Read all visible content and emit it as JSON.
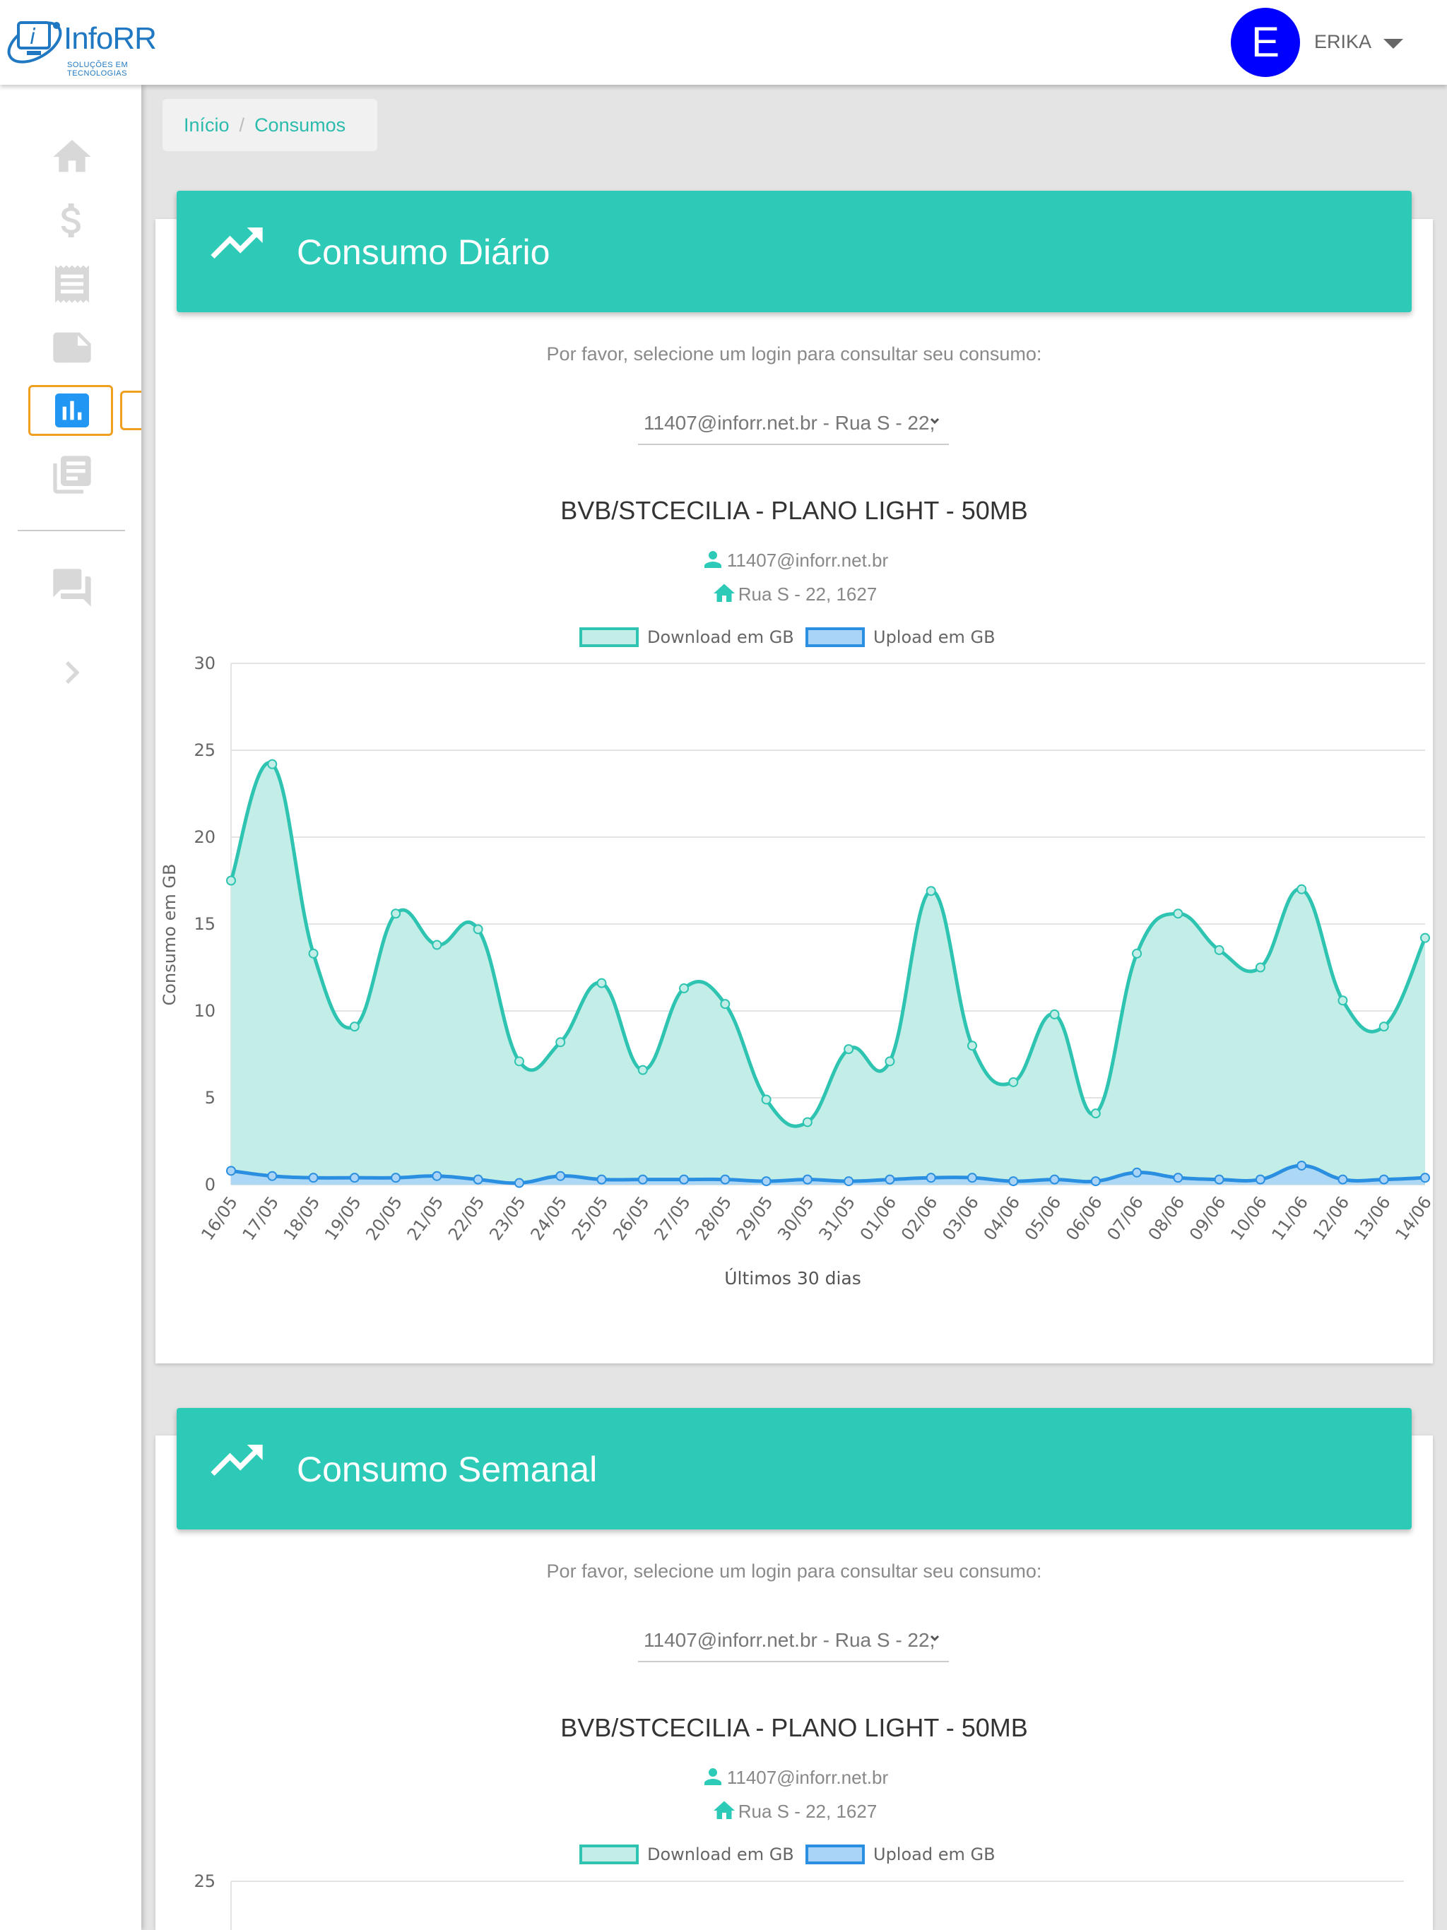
{
  "header": {
    "logo_text": "InfoRR",
    "logo_subtitle": "SOLUÇÕES EM TECNOLOGIAS",
    "avatar_letter": "E",
    "user_name": "ERIKA"
  },
  "sidebar": {
    "items": [
      {
        "name": "home-icon"
      },
      {
        "name": "dollar-icon"
      },
      {
        "name": "receipt-icon"
      },
      {
        "name": "note-icon"
      },
      {
        "name": "bar-chart-icon",
        "active": true
      },
      {
        "name": "library-books-icon"
      },
      {
        "name": "forum-icon"
      },
      {
        "name": "chevron-right-icon"
      }
    ]
  },
  "breadcrumb": {
    "home": "Início",
    "current": "Consumos"
  },
  "daily": {
    "title": "Consumo Diário",
    "prompt": "Por favor, selecione um login para consultar seu consumo:",
    "selected_login": "11407@inforr.net.br - Rua S - 22,",
    "plan": "BVB/STCECILIA - PLANO LIGHT - 50MB",
    "login": "11407@inforr.net.br",
    "address": "Rua S - 22, 1627"
  },
  "weekly": {
    "title": "Consumo Semanal",
    "prompt": "Por favor, selecione um login para consultar seu consumo:",
    "selected_login": "11407@inforr.net.br - Rua S - 22,",
    "plan": "BVB/STCECILIA - PLANO LIGHT - 50MB",
    "login": "11407@inforr.net.br",
    "address": "Rua S - 22, 1627"
  },
  "colors": {
    "accent": "#2dcbb7",
    "download_line": "#2ec4b1",
    "download_fill": "#c3eee8",
    "upload_line": "#2a8fe0",
    "upload_fill": "#a9d4f7",
    "avatar": "#0000ff",
    "active_highlight": "#f0a020"
  },
  "chart_data": [
    {
      "type": "area",
      "title": "",
      "xlabel": "Últimos 30 dias",
      "ylabel": "Consumo em GB",
      "ylim": [
        0,
        30
      ],
      "yticks": [
        0,
        5,
        10,
        15,
        20,
        25,
        30
      ],
      "grid": true,
      "legend": "top",
      "categories": [
        "16/05",
        "17/05",
        "18/05",
        "19/05",
        "20/05",
        "21/05",
        "22/05",
        "23/05",
        "24/05",
        "25/05",
        "26/05",
        "27/05",
        "28/05",
        "29/05",
        "30/05",
        "31/05",
        "01/06",
        "02/06",
        "03/06",
        "04/06",
        "05/06",
        "06/06",
        "07/06",
        "08/06",
        "09/06",
        "10/06",
        "11/06",
        "12/06",
        "13/06",
        "14/06"
      ],
      "series": [
        {
          "name": "Download em GB",
          "values": [
            17.5,
            24.2,
            13.3,
            9.1,
            15.6,
            13.8,
            14.7,
            7.1,
            8.2,
            11.6,
            6.6,
            11.3,
            10.4,
            4.9,
            3.6,
            7.8,
            7.1,
            16.9,
            8.0,
            5.9,
            9.8,
            4.1,
            13.3,
            15.6,
            13.5,
            12.5,
            17.0,
            10.6,
            9.1,
            14.2
          ]
        },
        {
          "name": "Upload em GB",
          "values": [
            0.8,
            0.5,
            0.4,
            0.4,
            0.4,
            0.5,
            0.3,
            0.1,
            0.5,
            0.3,
            0.3,
            0.3,
            0.3,
            0.2,
            0.3,
            0.2,
            0.3,
            0.4,
            0.4,
            0.2,
            0.3,
            0.2,
            0.7,
            0.4,
            0.3,
            0.3,
            1.1,
            0.3,
            0.3,
            0.4
          ]
        }
      ]
    },
    {
      "type": "area",
      "title": "",
      "ylim": [
        0,
        25
      ],
      "yticks": [
        25
      ],
      "grid": true,
      "legend": "top",
      "series": [
        {
          "name": "Download em GB"
        },
        {
          "name": "Upload em GB"
        }
      ]
    }
  ]
}
